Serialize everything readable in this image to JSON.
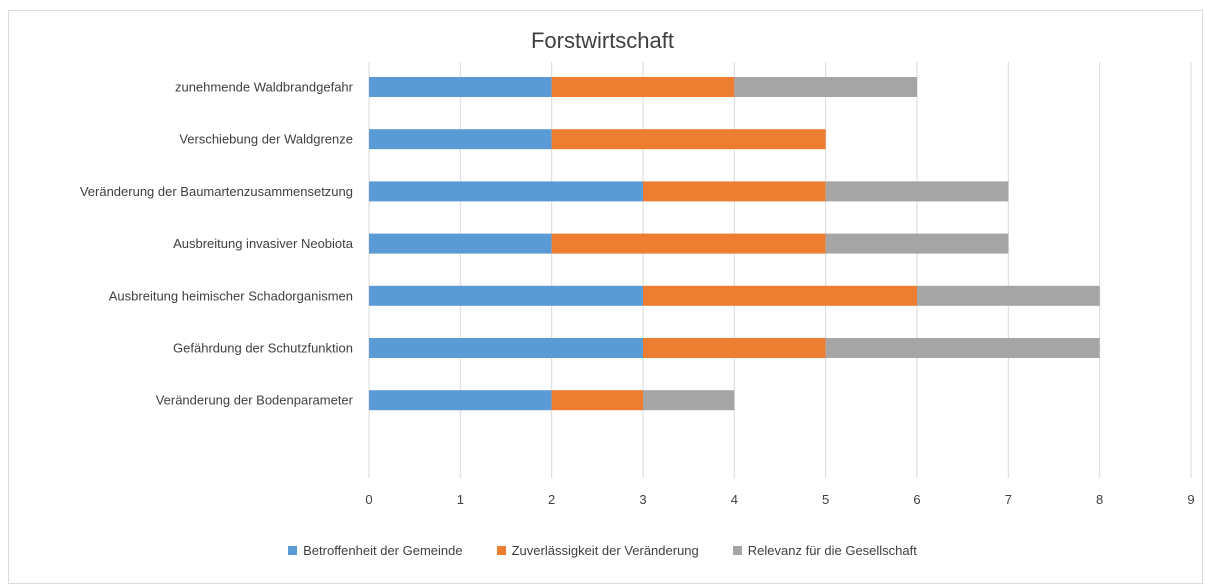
{
  "chart_data": {
    "type": "bar",
    "orientation": "horizontal",
    "stacked": true,
    "title": "Forstwirtschaft",
    "categories": [
      "zunehmende Waldbrandgefahr",
      "Verschiebung der Waldgrenze",
      "Veränderung der Baumartenzusammensetzung",
      "Ausbreitung invasiver Neobiota",
      "Ausbreitung heimischer Schadorganismen",
      "Gefährdung der Schutzfunktion",
      "Veränderung der Bodenparameter"
    ],
    "series": [
      {
        "name": "Betroffenheit der Gemeinde",
        "color": "#5b9bd5",
        "values": [
          2,
          2,
          3,
          2,
          3,
          3,
          2
        ]
      },
      {
        "name": "Zuverlässigkeit der Veränderung",
        "color": "#ed7d31",
        "values": [
          2,
          3,
          2,
          3,
          3,
          2,
          1
        ]
      },
      {
        "name": "Relevanz für die Gesellschaft",
        "color": "#a5a5a5",
        "values": [
          2,
          0,
          2,
          2,
          2,
          3,
          1
        ]
      }
    ],
    "xlim": [
      0,
      9
    ],
    "xticks": [
      "0",
      "1",
      "2",
      "3",
      "4",
      "5",
      "6",
      "7",
      "8",
      "9"
    ],
    "grid": true,
    "legend_position": "bottom"
  }
}
